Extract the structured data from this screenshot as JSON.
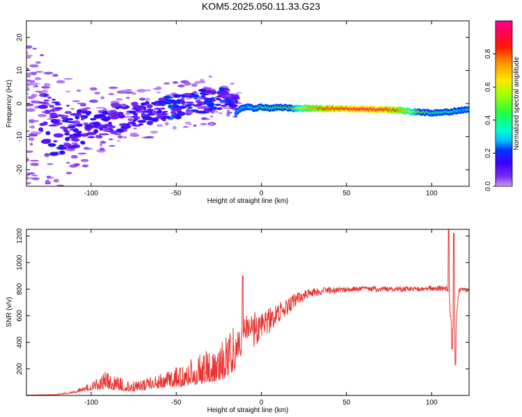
{
  "title": "KOM5.2025.050.11.33.G23",
  "chart_data": [
    {
      "type": "heatmap",
      "xlabel": "Height of straight line (km)",
      "ylabel": "Frequency (Hz)",
      "xlim": [
        -138,
        122
      ],
      "ylim": [
        -25,
        25
      ],
      "xticks": [
        -100,
        -50,
        0,
        50,
        100
      ],
      "yticks": [
        -20,
        -10,
        0,
        10,
        20
      ],
      "xtick_labels": [
        "-100",
        "-50",
        "0",
        "50",
        "100"
      ],
      "ytick_labels": [
        "-20",
        "-10",
        "0",
        "10",
        "20"
      ],
      "colorbar": {
        "label": "Normalized spectral amplitude",
        "range": [
          0,
          1
        ],
        "ticks": [
          0.0,
          0.2,
          0.4,
          0.6,
          0.8
        ],
        "tick_labels": [
          "0.0",
          "0.2",
          "0.4",
          "0.6",
          "0.8"
        ]
      },
      "ridge": {
        "x": [
          -15,
          -12,
          -8,
          -4,
          0,
          5,
          10,
          15,
          20,
          30,
          40,
          50,
          60,
          70,
          80,
          90,
          100,
          110,
          116,
          122
        ],
        "freq": [
          -3.0,
          -1.5,
          -1.0,
          -1.5,
          -1.0,
          -1.5,
          -1.0,
          -1.3,
          -1.5,
          -1.5,
          -1.5,
          -1.6,
          -1.7,
          -1.8,
          -2.0,
          -2.5,
          -2.8,
          -2.5,
          -2.0,
          -2.0
        ],
        "amplitude": [
          0.25,
          0.3,
          0.3,
          0.3,
          0.35,
          0.4,
          0.4,
          0.45,
          0.55,
          0.75,
          0.85,
          0.9,
          0.95,
          0.9,
          0.8,
          0.55,
          0.4,
          0.35,
          0.3,
          0.3
        ]
      },
      "scatter_band": {
        "x": [
          -138,
          -130,
          -120,
          -110,
          -100,
          -90,
          -80,
          -70,
          -60,
          -50,
          -40,
          -30,
          -20,
          -15
        ],
        "center": [
          -5,
          -6,
          -7,
          -8,
          -6,
          -5,
          -4,
          -3,
          -2,
          -1,
          0,
          1,
          2,
          0
        ],
        "spread": [
          14,
          14,
          12,
          9,
          7,
          6,
          6,
          5,
          5,
          5,
          5,
          5,
          4,
          3
        ]
      },
      "grid": false
    },
    {
      "type": "line",
      "xlabel": "Height of straight line (km)",
      "ylabel": "SNR (v/v)",
      "xlim": [
        -138,
        122
      ],
      "ylim": [
        0,
        1250
      ],
      "xticks": [
        -100,
        -50,
        0,
        50,
        100
      ],
      "yticks": [
        200,
        400,
        600,
        800,
        1000,
        1200
      ],
      "xtick_labels": [
        "-100",
        "-50",
        "0",
        "50",
        "100"
      ],
      "ytick_labels": [
        "200",
        "400",
        "600",
        "800",
        "1000",
        "1200"
      ],
      "color": "#e8322e",
      "envelope": {
        "x": [
          -138,
          -120,
          -110,
          -100,
          -92,
          -85,
          -75,
          -65,
          -55,
          -45,
          -35,
          -25,
          -20,
          -15,
          -12,
          -10,
          -5,
          0,
          10,
          20,
          30,
          40,
          50,
          60,
          70,
          80,
          90,
          100,
          105,
          110,
          112,
          114,
          116,
          122
        ],
        "base": [
          2,
          5,
          20,
          40,
          50,
          40,
          30,
          50,
          60,
          70,
          90,
          110,
          140,
          200,
          300,
          400,
          480,
          520,
          620,
          720,
          775,
          790,
          795,
          800,
          800,
          800,
          800,
          805,
          805,
          800,
          500,
          500,
          800,
          790
        ],
        "amp": [
          2,
          5,
          15,
          60,
          130,
          100,
          80,
          90,
          120,
          180,
          230,
          280,
          350,
          330,
          250,
          200,
          150,
          120,
          80,
          50,
          30,
          25,
          20,
          20,
          20,
          20,
          20,
          20,
          20,
          20,
          20,
          20,
          20,
          15
        ]
      },
      "spikes": [
        {
          "x": -11,
          "y": 900
        },
        {
          "x": 110,
          "y": 1250
        },
        {
          "x": 111,
          "y": 600
        },
        {
          "x": 112,
          "y": 350
        },
        {
          "x": 113,
          "y": 1220
        },
        {
          "x": 114,
          "y": 230
        }
      ],
      "grid": false
    }
  ]
}
